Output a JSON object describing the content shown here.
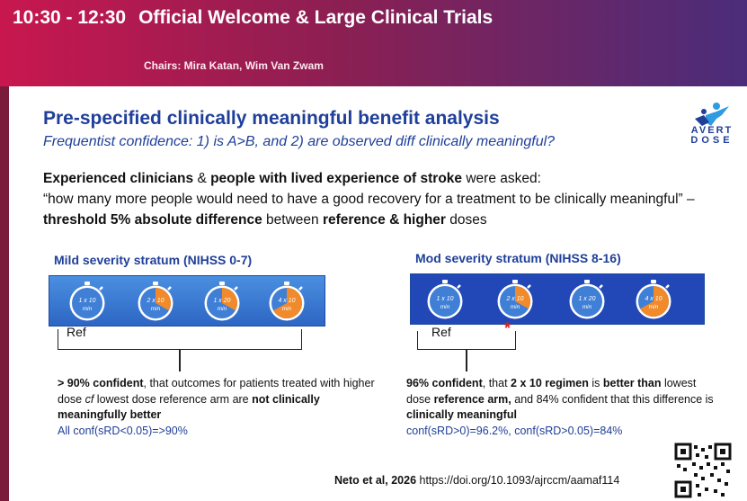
{
  "banner": {
    "time": "10:30 - 12:30",
    "title": "Official Welcome & Large Clinical Trials",
    "chairs": "Chairs: Mira Katan, Wim Van Zwam"
  },
  "slide": {
    "headline": "Pre-specified clinically meaningful benefit analysis",
    "subhead": "Frequentist confidence: 1) is A>B, and 2) are observed diff clinically meaningful?",
    "logo": {
      "line1": "AVERT",
      "line2": "DOSE"
    },
    "para": {
      "b1": "Experienced clinicians",
      "t1": " & ",
      "b2": "people with lived experience of stroke",
      "t2": "  were asked:",
      "t3": "“how many more people would need to have a good recovery for a treatment to be clinically meaningful” – ",
      "b3": "threshold 5% absolute difference",
      "t4": " between ",
      "b4": "reference & higher",
      "t5": " doses"
    },
    "mild": {
      "title": "Mild severity stratum (NIHSS 0-7)",
      "timers": [
        {
          "label1": "1 x 10",
          "label2": "min",
          "fill": 0.0
        },
        {
          "label1": "2 x 10",
          "label2": "min",
          "fill": 0.33
        },
        {
          "label1": "1 x 20",
          "label2": "min",
          "fill": 0.33
        },
        {
          "label1": "4 x 10",
          "label2": "min",
          "fill": 0.67
        }
      ],
      "ref": "Ref",
      "note": {
        "b1": "> 90% confident",
        "t1": ", that outcomes for patients treated with higher dose ",
        "i1": "cf",
        "t2": " lowest dose reference arm are ",
        "b2": "not clinically meaningfully better",
        "stat": "All conf(sRD<0.05)=>90%"
      }
    },
    "mod": {
      "title": "Mod severity stratum (NIHSS 8-16)",
      "timers": [
        {
          "label1": "1 x 10",
          "label2": "min",
          "fill": 0.0
        },
        {
          "label1": "2 x 10",
          "label2": "min",
          "fill": 0.33
        },
        {
          "label1": "1 x 20",
          "label2": "min",
          "fill": 0.0
        },
        {
          "label1": "4 x 10",
          "label2": "min",
          "fill": 0.67
        }
      ],
      "ref": "Ref",
      "star": "*",
      "note": {
        "b1": "96% confident",
        "t1": ", that ",
        "b2": "2 x 10 regimen",
        "t2": " is ",
        "b3": "better than",
        "t3": " lowest dose ",
        "b4": "reference arm,",
        "t4": " and 84% confident that this difference is ",
        "b5": "clinically meaningful",
        "stat": "conf(sRD>0)=96.2%, conf(sRD>0.05)=84%"
      }
    },
    "citation": {
      "authors": "Neto et al, 2026",
      "url": " https://doi.org/10.1093/ajrccm/aamaf114"
    }
  },
  "colors": {
    "accent": "#1f3f99",
    "banner_start": "#c8174f",
    "banner_end": "#4a2d7a",
    "timer_fill": "#f08a2a",
    "star": "#e02020"
  }
}
